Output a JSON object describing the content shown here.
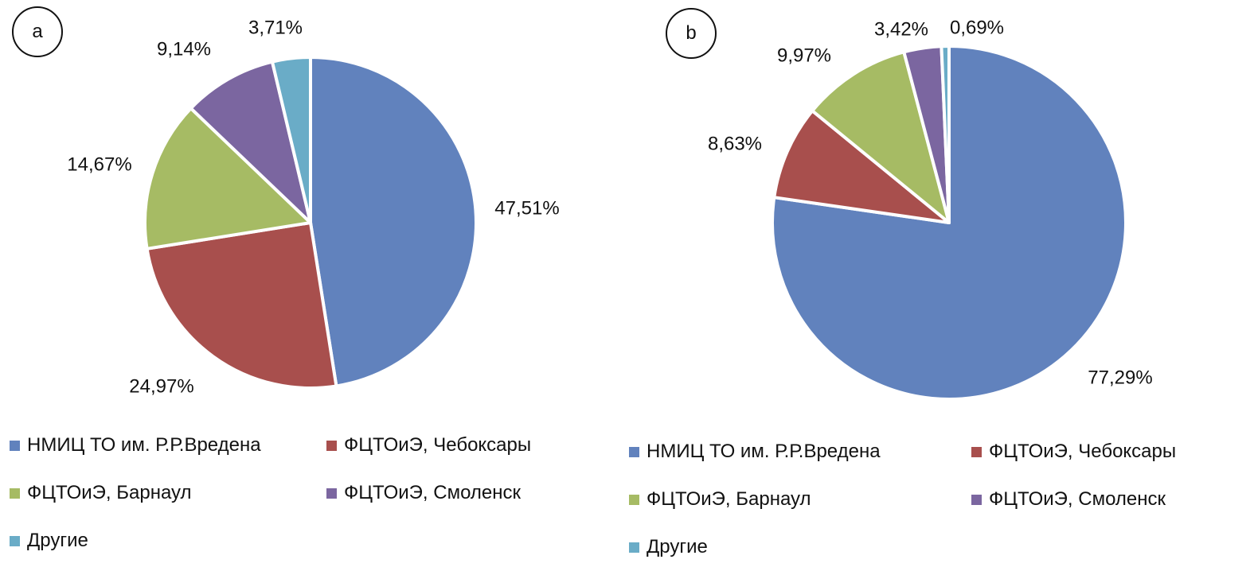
{
  "chart_data": [
    {
      "panel": "a",
      "type": "pie",
      "labels": [
        "НМИЦ ТО им. Р.Р.Вредена",
        "ФЦТОиЭ, Чебоксары",
        "ФЦТОиЭ, Барнаул",
        "ФЦТОиЭ, Смоленск",
        "Другие"
      ],
      "values": [
        47.51,
        24.97,
        14.67,
        9.14,
        3.71
      ],
      "value_labels": [
        "47,51%",
        "24,97%",
        "14,67%",
        "9,14%",
        "3,71%"
      ],
      "colors": [
        "#6182BD",
        "#A84F4D",
        "#A6BB64",
        "#7B66A0",
        "#6AACC7"
      ],
      "start_angle": "12 o'clock",
      "direction": "clockwise",
      "legend": "bottom"
    },
    {
      "panel": "b",
      "type": "pie",
      "labels": [
        "НМИЦ ТО им. Р.Р.Вредена",
        "ФЦТОиЭ, Чебоксары",
        "ФЦТОиЭ, Барнаул",
        "ФЦТОиЭ, Смоленск",
        "Другие"
      ],
      "values": [
        77.29,
        8.63,
        9.97,
        3.42,
        0.69
      ],
      "value_labels": [
        "77,29%",
        "8,63%",
        "9,97%",
        "3,42%",
        "0,69%"
      ],
      "colors": [
        "#6182BD",
        "#A84F4D",
        "#A6BB64",
        "#7B66A0",
        "#6AACC7"
      ],
      "start_angle": "12 o'clock",
      "direction": "clockwise",
      "legend": "bottom"
    }
  ]
}
